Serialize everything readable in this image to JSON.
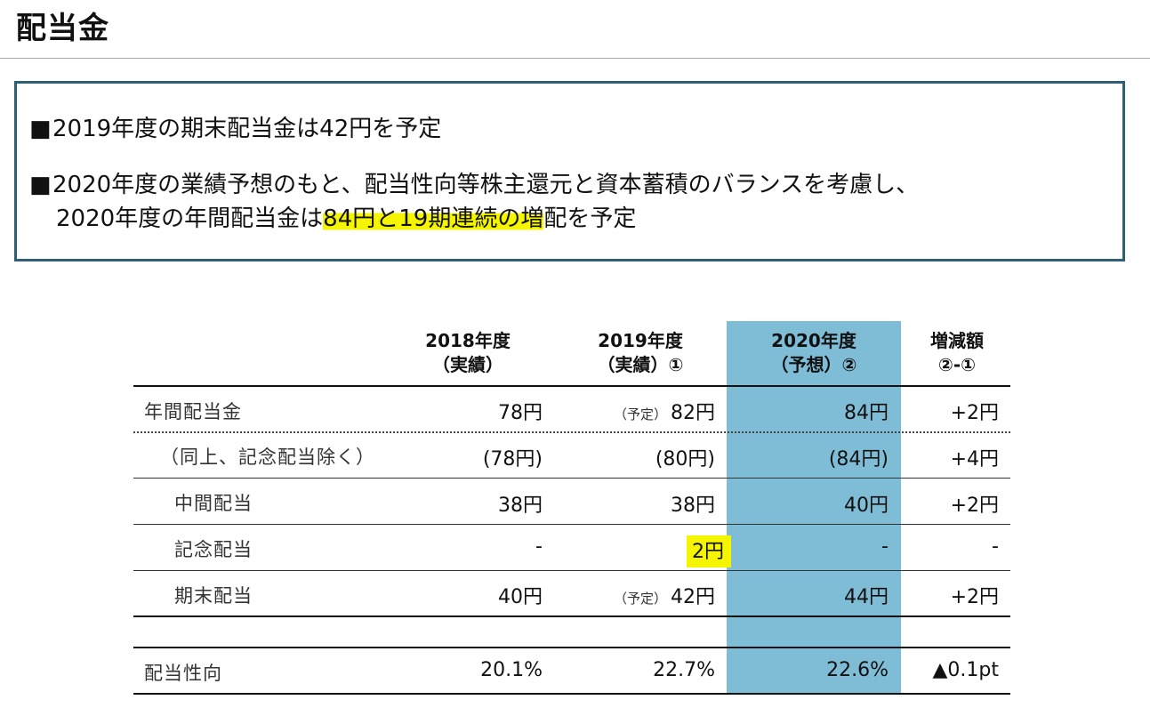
{
  "page": {
    "title": "配当金"
  },
  "summary": {
    "bullet_mark": "■",
    "bullet1": "2019年度の期末配当金は42円を予定",
    "bullet2_line1": "2020年度の業績予想のもと、配当性向等株主還元と資本蓄積のバランスを考慮し、",
    "bullet2_line2_pre": "2020年度の年間配当金は",
    "bullet2_line2_hl": "84円と19期連続の増",
    "bullet2_line2_post": "配を予定"
  },
  "table": {
    "headers": [
      {
        "line1": "2018年度",
        "line2": "（実績）"
      },
      {
        "line1": "2019年度",
        "line2": "（実績）①"
      },
      {
        "line1": "2020年度",
        "line2": "（予想）②"
      },
      {
        "line1": "増減額",
        "line2": "②-①"
      }
    ],
    "rows": [
      {
        "label": "年間配当金",
        "c2018": "78円",
        "c2019_note": "（予定）",
        "c2019": "82円",
        "c2020": "84円",
        "diff": "+2円"
      },
      {
        "label": "（同上、記念配当除く）",
        "c2018": "(78円)",
        "c2019_note": "",
        "c2019": "(80円)",
        "c2020": "(84円)",
        "diff": "+4円"
      },
      {
        "label": "中間配当",
        "c2018": "38円",
        "c2019_note": "",
        "c2019": "38円",
        "c2020": "40円",
        "diff": "+2円"
      },
      {
        "label": "記念配当",
        "c2018": "-",
        "c2019_note": "",
        "c2019": "2円",
        "c2020": "-",
        "diff": "-"
      },
      {
        "label": "期末配当",
        "c2018": "40円",
        "c2019_note": "（予定）",
        "c2019": "42円",
        "c2020": "44円",
        "diff": "+2円"
      }
    ],
    "payout": {
      "label": "配当性向",
      "c2018": "20.1%",
      "c2019": "22.7%",
      "c2020": "22.6%",
      "diff": "▲0.1pt"
    }
  },
  "colors": {
    "forecast_band": "#7fbcd6",
    "highlight": "#f5f500",
    "box_border": "#2f5f72"
  }
}
